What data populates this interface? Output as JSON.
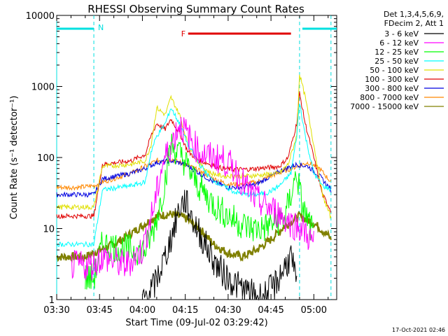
{
  "chart_data": {
    "type": "line",
    "title": "RHESSI Observing Summary Count Rates",
    "xlabel": "Start Time (09-Jul-02 03:29:42)",
    "ylabel": "Count Rate (s⁻¹ detector⁻¹)",
    "yscale": "log",
    "ylim": [
      1,
      10000
    ],
    "xlim": [
      0,
      98
    ],
    "x_unit": "minutes after 03:30",
    "x_ticks": [
      0,
      15,
      30,
      45,
      60,
      75,
      90
    ],
    "x_tick_labels": [
      "03:30",
      "03:45",
      "04:00",
      "04:15",
      "04:30",
      "04:45",
      "05:00"
    ],
    "y_ticks": [
      1,
      10,
      100,
      1000,
      10000
    ],
    "y_tick_labels": [
      "1",
      "10",
      "100",
      "1000",
      "10000"
    ],
    "legend_header": [
      "Det 1,3,4,5,6,9,",
      "FDecim 2, Att 1"
    ],
    "footer_date": "17-Oct-2021 02:46",
    "flare_marker": {
      "label": "F",
      "start": 46,
      "end": 82,
      "color": "#e00000"
    },
    "night_marker": {
      "label": "N",
      "color": "#00e0e0",
      "intervals": [
        [
          0,
          13
        ],
        [
          86,
          98
        ]
      ]
    },
    "saa_lines": [
      13,
      85,
      96
    ],
    "series": [
      {
        "name": "3 - 6 keV",
        "color": "#000000",
        "x": [
          30,
          34,
          38,
          41,
          43,
          45,
          48,
          52,
          56,
          60,
          64,
          68,
          72,
          76,
          80,
          82,
          84
        ],
        "values": [
          1,
          1.5,
          4,
          10,
          20,
          25,
          12,
          6,
          3,
          2,
          1.5,
          1.2,
          1.1,
          1.5,
          3,
          4,
          1.5
        ]
      },
      {
        "name": "6 - 12 keV",
        "color": "#ff00ff",
        "x": [
          5,
          12,
          16,
          24,
          30,
          34,
          37,
          40,
          43,
          46,
          50,
          54,
          58,
          62,
          66,
          70,
          74,
          78,
          82,
          86,
          90
        ],
        "values": [
          3,
          3,
          4,
          3,
          5,
          20,
          80,
          150,
          300,
          200,
          120,
          100,
          95,
          70,
          40,
          25,
          20,
          16,
          12,
          10,
          6
        ]
      },
      {
        "name": "12 - 25 keV",
        "color": "#00ff00",
        "x": [
          10,
          13,
          16,
          26,
          31,
          34,
          37,
          40,
          44,
          48,
          52,
          56,
          60,
          64,
          68,
          72,
          76,
          80,
          82,
          84,
          86,
          90
        ],
        "values": [
          2,
          2,
          6,
          5,
          5,
          10,
          30,
          150,
          100,
          50,
          30,
          20,
          15,
          12,
          10,
          10,
          12,
          15,
          30,
          60,
          20,
          8
        ]
      },
      {
        "name": "25 - 50 keV",
        "color": "#00ffff",
        "x": [
          0,
          13,
          16,
          26,
          31,
          33,
          35,
          38,
          40,
          43,
          46,
          50,
          54,
          58,
          62,
          66,
          70,
          74,
          78,
          82,
          84,
          85,
          87,
          90,
          93,
          96
        ],
        "values": [
          6,
          6,
          35,
          40,
          45,
          120,
          200,
          300,
          500,
          300,
          150,
          80,
          50,
          40,
          33,
          30,
          30,
          32,
          40,
          60,
          200,
          600,
          200,
          60,
          40,
          35
        ]
      },
      {
        "name": "50 - 100 keV",
        "color": "#e0e000",
        "x": [
          0,
          8,
          13,
          16,
          26,
          31,
          33,
          35,
          38,
          40,
          43,
          46,
          50,
          54,
          58,
          62,
          66,
          70,
          74,
          78,
          81,
          84,
          85,
          87,
          90,
          93,
          96
        ],
        "values": [
          20,
          20,
          20,
          75,
          80,
          90,
          150,
          500,
          400,
          700,
          400,
          150,
          80,
          60,
          55,
          55,
          55,
          56,
          58,
          60,
          80,
          200,
          1500,
          700,
          150,
          30,
          14
        ]
      },
      {
        "name": "100 - 300 keV",
        "color": "#e00000",
        "x": [
          0,
          8,
          13,
          16,
          26,
          31,
          33,
          35,
          38,
          40,
          43,
          46,
          50,
          54,
          58,
          62,
          66,
          70,
          74,
          78,
          81,
          84,
          85,
          87,
          90,
          93,
          96
        ],
        "values": [
          15,
          15,
          15,
          80,
          90,
          110,
          200,
          300,
          250,
          350,
          220,
          120,
          90,
          80,
          70,
          68,
          68,
          70,
          72,
          75,
          100,
          300,
          800,
          300,
          100,
          30,
          18
        ]
      },
      {
        "name": "300 - 800 keV",
        "color": "#0000e0",
        "x": [
          0,
          8,
          13,
          16,
          26,
          31,
          35,
          40,
          45,
          50,
          55,
          60,
          65,
          70,
          75,
          80,
          84,
          88,
          92,
          96
        ],
        "values": [
          30,
          30,
          30,
          50,
          60,
          70,
          85,
          90,
          80,
          60,
          45,
          38,
          38,
          42,
          55,
          70,
          80,
          75,
          55,
          35
        ]
      },
      {
        "name": "800 - 7000 keV",
        "color": "#ff8800",
        "x": [
          0,
          8,
          13,
          16,
          26,
          31,
          35,
          40,
          45,
          50,
          55,
          60,
          65,
          70,
          75,
          80,
          84,
          88,
          92,
          96
        ],
        "values": [
          38,
          38,
          40,
          45,
          60,
          75,
          90,
          95,
          80,
          65,
          50,
          42,
          42,
          45,
          55,
          65,
          75,
          85,
          70,
          45
        ]
      },
      {
        "name": "7000 - 15000 keV",
        "color": "#808000",
        "x": [
          0,
          10,
          15,
          20,
          25,
          30,
          35,
          40,
          45,
          50,
          55,
          60,
          65,
          70,
          75,
          80,
          85,
          90,
          95,
          96
        ],
        "values": [
          4,
          4,
          5,
          6,
          8,
          11,
          15,
          16,
          14,
          10,
          6,
          4.5,
          4,
          5,
          7,
          11,
          15,
          12,
          8,
          7
        ]
      }
    ]
  }
}
